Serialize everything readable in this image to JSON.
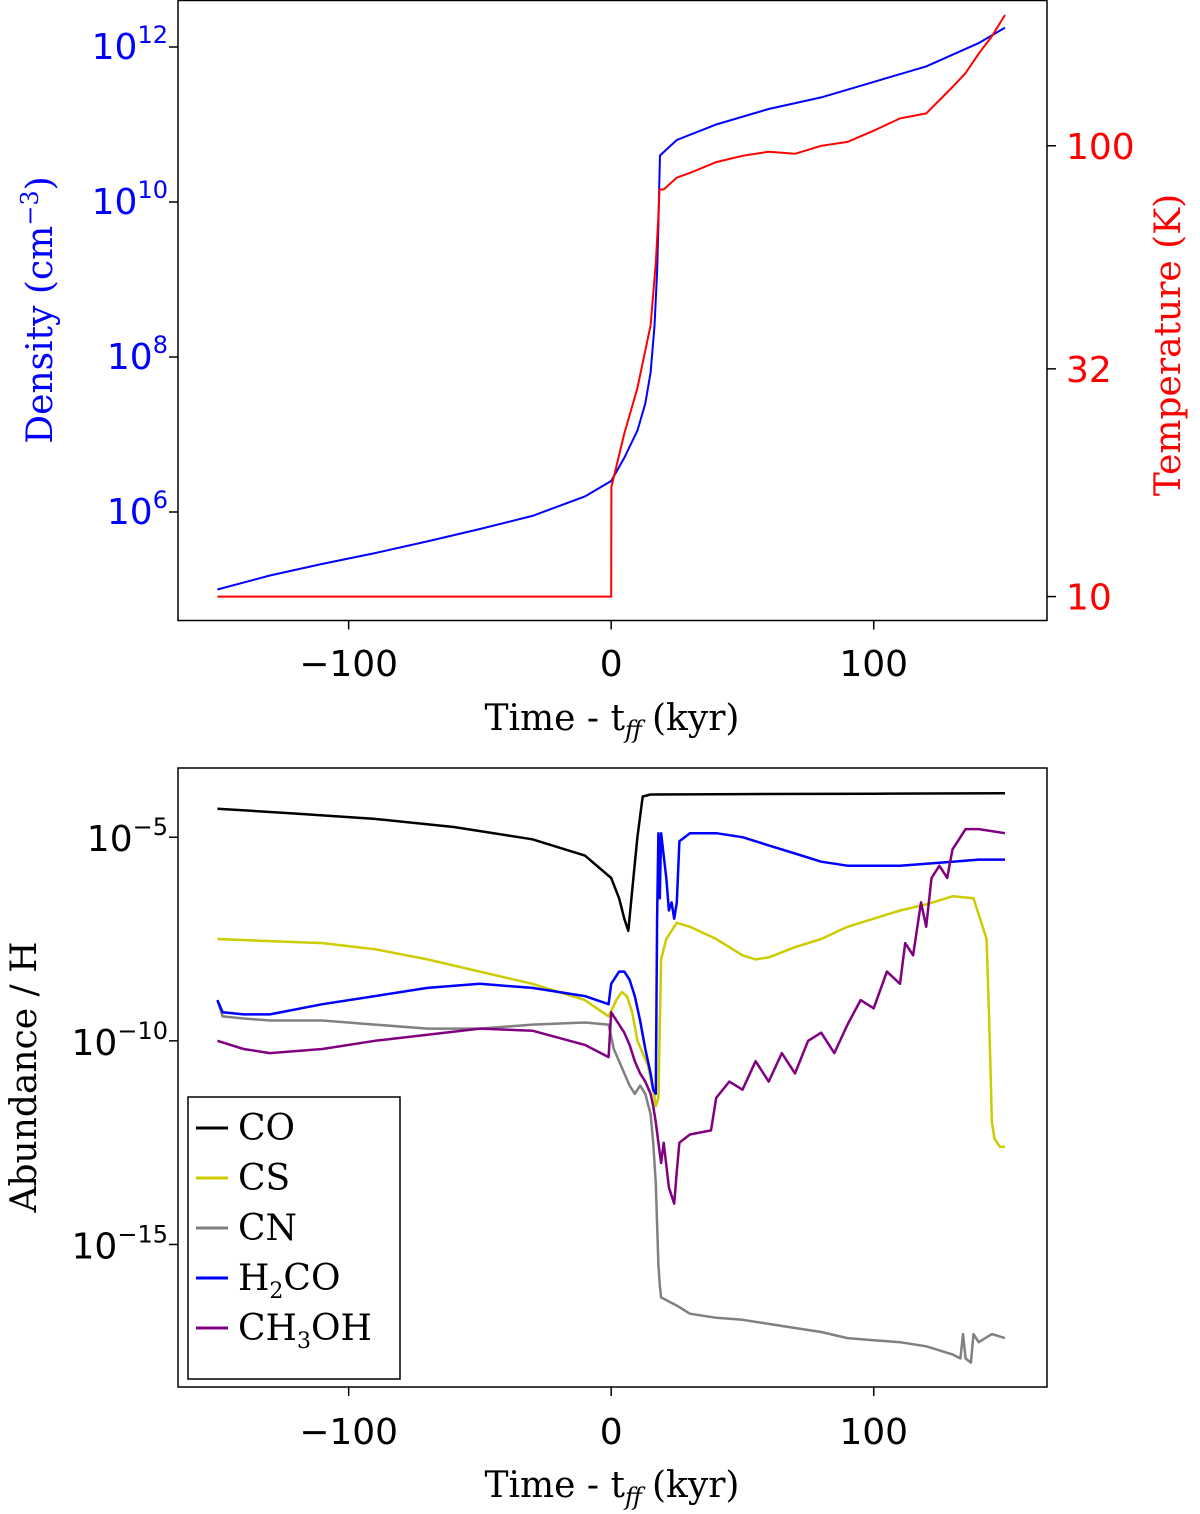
{
  "chart_data": [
    {
      "type": "line",
      "xlabel": "Time - t",
      "xlabel_sub": "ff",
      "xlabel_unit": "(kyr)",
      "xlim": [
        -165,
        166
      ],
      "xticks": [
        -100,
        0,
        100
      ],
      "xtick_labels": [
        "−100",
        "0",
        "100"
      ],
      "left_axis": {
        "label": "Density (cm",
        "label_sup": "−3",
        "label_close": ")",
        "color": "#0000ff",
        "scale": "log",
        "ylim_exp": [
          4.6,
          12.6
        ],
        "ticks_exp": [
          6,
          8,
          10,
          12
        ],
        "tick_base": "10"
      },
      "right_axis": {
        "label": "Temperature (K)",
        "color": "#ff0000",
        "scale": "log",
        "ylim": [
          8.85,
          210
        ],
        "ticks": [
          10,
          32,
          100
        ],
        "tick_labels": [
          "10",
          "32",
          "100"
        ]
      },
      "series": [
        {
          "name": "Density",
          "axis": "left",
          "color": "#0000ff",
          "x": [
            -150,
            -130,
            -110,
            -90,
            -70,
            -50,
            -30,
            -10,
            0,
            5,
            10,
            13,
            15,
            16.5,
            17.5,
            18,
            18.3,
            18.6,
            25,
            40,
            60,
            80,
            100,
            120,
            140,
            150
          ],
          "log_y": [
            5.0,
            5.18,
            5.33,
            5.47,
            5.62,
            5.78,
            5.95,
            6.2,
            6.4,
            6.7,
            7.05,
            7.4,
            7.8,
            8.4,
            9.1,
            9.7,
            10.2,
            10.6,
            10.8,
            11.0,
            11.2,
            11.35,
            11.55,
            11.75,
            12.05,
            12.25
          ]
        },
        {
          "name": "Temperature",
          "axis": "right",
          "color": "#ff0000",
          "x": [
            -150,
            0,
            0.1,
            5,
            10,
            15,
            17,
            18,
            18.4,
            20,
            25,
            30,
            40,
            50,
            60,
            70,
            80,
            90,
            100,
            110,
            120,
            130,
            135,
            140,
            145,
            150
          ],
          "y": [
            10,
            10,
            17.5,
            23,
            29,
            40,
            55,
            70,
            80,
            80,
            85,
            87,
            92,
            95,
            97,
            96,
            100,
            102,
            108,
            115,
            118,
            135,
            145,
            160,
            175,
            195
          ]
        }
      ]
    },
    {
      "type": "line",
      "xlabel": "Time - t",
      "xlabel_sub": "ff",
      "xlabel_unit": "(kyr)",
      "ylabel": "Abundance / H",
      "yscale": "log",
      "xlim": [
        -165,
        166
      ],
      "ylim_exp": [
        -18.5,
        -3.3
      ],
      "xticks": [
        -100,
        0,
        100
      ],
      "xtick_labels": [
        "−100",
        "0",
        "100"
      ],
      "yticks_exp": [
        -15,
        -10,
        -5
      ],
      "ytick_base": "10",
      "ytick_exp_labels": [
        "−15",
        "−10",
        "−5"
      ],
      "legend": {
        "position": "lower-left",
        "entries": [
          {
            "label": "CO",
            "label_sub": "",
            "label_tail": "",
            "color": "#000000"
          },
          {
            "label": "CS",
            "label_sub": "",
            "label_tail": "",
            "color": "#cccc00"
          },
          {
            "label": "CN",
            "label_sub": "",
            "label_tail": "",
            "color": "#808080"
          },
          {
            "label": "H",
            "label_sub": "2",
            "label_tail": "CO",
            "color": "#0000ff"
          },
          {
            "label": "CH",
            "label_sub": "3",
            "label_tail": "OH",
            "color": "#800080"
          }
        ]
      },
      "series": [
        {
          "name": "CO",
          "color": "#000000",
          "x": [
            -150,
            -120,
            -90,
            -60,
            -30,
            -10,
            0,
            3,
            5,
            6.5,
            8,
            10,
            12,
            15,
            50,
            100,
            150
          ],
          "log_y": [
            -4.3,
            -4.42,
            -4.55,
            -4.75,
            -5.05,
            -5.45,
            -6.0,
            -6.5,
            -7.0,
            -7.3,
            -6.3,
            -5.0,
            -4.0,
            -3.95,
            -3.94,
            -3.93,
            -3.92
          ]
        },
        {
          "name": "CS",
          "color": "#cccc00",
          "x": [
            -150,
            -130,
            -110,
            -90,
            -70,
            -50,
            -30,
            -10,
            -1,
            2,
            4,
            6,
            8,
            10,
            12,
            14,
            16,
            17,
            18,
            19,
            21,
            25,
            30,
            40,
            50,
            55,
            60,
            70,
            80,
            90,
            100,
            110,
            120,
            130,
            138,
            143,
            144,
            145,
            146,
            148,
            150
          ],
          "log_y": [
            -7.5,
            -7.55,
            -7.6,
            -7.75,
            -8.0,
            -8.3,
            -8.6,
            -9.0,
            -9.4,
            -9.0,
            -8.8,
            -8.9,
            -9.3,
            -10.0,
            -10.3,
            -10.6,
            -11.2,
            -11.6,
            -11.4,
            -8.0,
            -7.5,
            -7.1,
            -7.2,
            -7.5,
            -7.9,
            -8.0,
            -7.95,
            -7.7,
            -7.5,
            -7.2,
            -7.0,
            -6.8,
            -6.65,
            -6.45,
            -6.5,
            -7.5,
            -9.5,
            -12.0,
            -12.4,
            -12.6,
            -12.6
          ]
        },
        {
          "name": "CN",
          "color": "#808080",
          "x": [
            -150,
            -148,
            -140,
            -130,
            -110,
            -90,
            -70,
            -50,
            -30,
            -10,
            -1,
            1,
            3,
            5,
            7,
            9,
            11,
            13,
            15,
            16,
            17,
            17.5,
            18,
            18.5,
            19,
            22,
            25,
            30,
            40,
            50,
            60,
            70,
            80,
            90,
            100,
            110,
            120,
            130,
            133,
            134,
            135,
            137,
            138,
            140,
            145,
            150
          ],
          "log_y": [
            -9.0,
            -9.4,
            -9.45,
            -9.5,
            -9.5,
            -9.6,
            -9.7,
            -9.7,
            -9.6,
            -9.55,
            -9.6,
            -10.2,
            -10.5,
            -10.8,
            -11.1,
            -11.3,
            -11.1,
            -11.3,
            -11.8,
            -12.5,
            -13.5,
            -14.5,
            -15.5,
            -16.0,
            -16.3,
            -16.4,
            -16.5,
            -16.7,
            -16.8,
            -16.85,
            -16.95,
            -17.05,
            -17.15,
            -17.3,
            -17.35,
            -17.4,
            -17.5,
            -17.7,
            -17.8,
            -17.2,
            -17.8,
            -17.9,
            -17.2,
            -17.4,
            -17.2,
            -17.3
          ]
        },
        {
          "name": "H2CO",
          "color": "#0000ff",
          "x": [
            -150,
            -148,
            -140,
            -130,
            -110,
            -90,
            -70,
            -50,
            -30,
            -10,
            -1,
            0,
            1,
            3,
            5,
            7,
            9,
            11,
            13,
            15,
            16,
            17,
            17.5,
            18,
            18.5,
            19,
            21,
            22,
            23,
            24,
            25,
            26,
            28,
            30,
            40,
            50,
            60,
            70,
            80,
            90,
            100,
            110,
            120,
            130,
            140,
            150
          ],
          "log_y": [
            -9.0,
            -9.3,
            -9.35,
            -9.35,
            -9.1,
            -8.9,
            -8.7,
            -8.6,
            -8.7,
            -8.9,
            -9.1,
            -8.6,
            -8.5,
            -8.3,
            -8.3,
            -8.5,
            -8.9,
            -9.5,
            -10.2,
            -10.8,
            -11.2,
            -11.3,
            -7.0,
            -4.9,
            -6.5,
            -4.9,
            -6.0,
            -6.8,
            -6.6,
            -7.0,
            -6.6,
            -5.1,
            -5.0,
            -4.9,
            -4.9,
            -5.0,
            -5.2,
            -5.4,
            -5.6,
            -5.7,
            -5.7,
            -5.7,
            -5.65,
            -5.6,
            -5.55,
            -5.55
          ]
        },
        {
          "name": "CH3OH",
          "color": "#800080",
          "x": [
            -150,
            -140,
            -130,
            -110,
            -90,
            -70,
            -50,
            -30,
            -10,
            -1,
            0,
            1,
            3,
            5,
            7,
            9,
            11,
            13,
            15,
            16,
            17,
            18,
            19,
            20,
            22,
            24,
            25,
            26,
            30,
            38,
            40,
            45,
            50,
            55,
            60,
            65,
            70,
            75,
            80,
            85,
            90,
            95,
            100,
            105,
            110,
            112,
            115,
            118,
            120,
            122,
            125,
            128,
            130,
            135,
            140,
            150
          ],
          "log_y": [
            -10.0,
            -10.2,
            -10.3,
            -10.2,
            -10.0,
            -9.85,
            -9.7,
            -9.75,
            -10.1,
            -10.4,
            -9.3,
            -9.4,
            -9.6,
            -9.8,
            -10.1,
            -10.5,
            -10.8,
            -11.0,
            -11.3,
            -11.6,
            -12.0,
            -12.5,
            -13.0,
            -12.5,
            -13.6,
            -14.0,
            -13.2,
            -12.5,
            -12.3,
            -12.2,
            -11.4,
            -11.0,
            -11.2,
            -10.5,
            -11.0,
            -10.3,
            -10.8,
            -10.0,
            -9.8,
            -10.3,
            -9.6,
            -9.0,
            -9.2,
            -8.3,
            -8.6,
            -7.6,
            -7.9,
            -6.6,
            -7.2,
            -6.0,
            -5.7,
            -6.0,
            -5.3,
            -4.8,
            -4.8,
            -4.9
          ]
        }
      ]
    }
  ]
}
